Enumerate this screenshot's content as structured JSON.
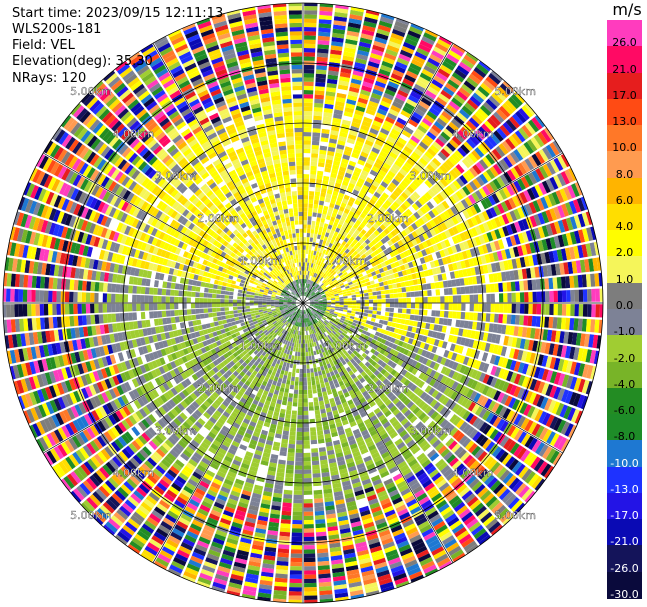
{
  "info": {
    "start_time": "Start time: 2023/09/15 12:11:13",
    "instrument": "WLS200s-181",
    "field": "Field: VEL",
    "elevation": "Elevation(deg): 35.30",
    "nrays": "NRays: 120"
  },
  "range_labels": [
    "1.00km",
    "2.00km",
    "3.00km",
    "4.00km",
    "5.00km"
  ],
  "colorbar": {
    "unit": "m/s",
    "ticks": [
      "26.0",
      "21.0",
      "17.0",
      "13.0",
      "10.0",
      "8.0",
      "6.0",
      "4.0",
      "2.0",
      "1.0",
      "0.0",
      "-1.0",
      "-2.0",
      "-4.0",
      "-6.0",
      "-8.0",
      "-10.0",
      "-13.0",
      "-17.0",
      "-21.0",
      "-26.0",
      "-30.0"
    ],
    "colors": [
      "#ff3cbe",
      "#ff0a64",
      "#e61e1e",
      "#ff4b14",
      "#ff7828",
      "#ff9b50",
      "#ffb400",
      "#ffde00",
      "#fffd00",
      "#f5f55a",
      "#7d7d7d",
      "#7d8296",
      "#a0cd32",
      "#78b428",
      "#238c23",
      "#1e8c28",
      "#1e78d2",
      "#1e32ff",
      "#2314e6",
      "#0a0ab4",
      "#14145a",
      "#0a0a3c"
    ]
  },
  "chart_data": {
    "type": "ppi",
    "field": "VEL",
    "unit": "m/s",
    "nrays": 120,
    "elevation_deg": 35.3,
    "max_range_km": 5.0,
    "range_rings_km": [
      1,
      2,
      3,
      4,
      5
    ],
    "note_regions": [
      {
        "region": "north-west to north-east, 0.5-3.5 km",
        "velocity": "positive ~1 to 2 m/s"
      },
      {
        "region": "south-east to south-west, 0.5-3.5 km",
        "velocity": "negative ~-1 to -4 m/s"
      },
      {
        "region": "outer ring 3.5-5.0 km",
        "velocity": "noise (all values)"
      }
    ]
  }
}
